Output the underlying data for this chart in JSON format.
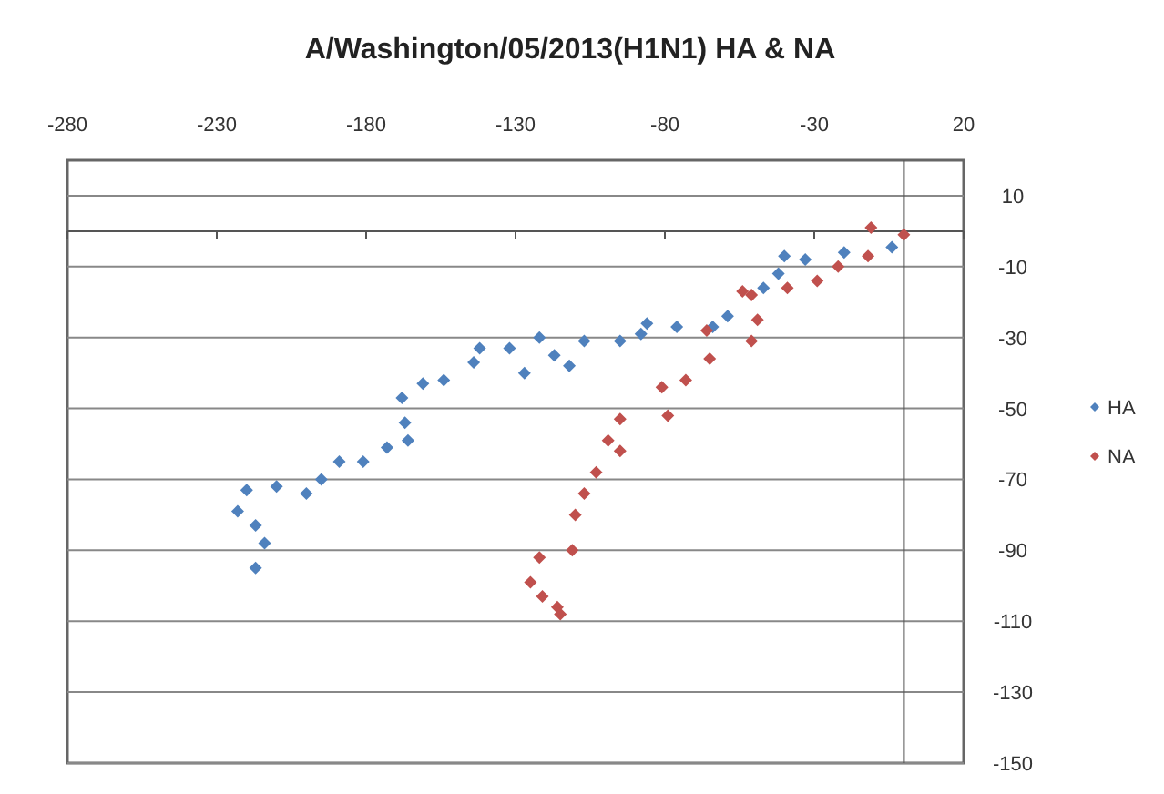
{
  "chart_data": {
    "type": "scatter",
    "title": "A/Washington/05/2013(H1N1) HA & NA",
    "xlim": [
      -280,
      20
    ],
    "xticks": [
      -280,
      -230,
      -180,
      -130,
      -80,
      -30,
      20
    ],
    "ylim": [
      -150,
      20
    ],
    "yticks": [
      -150,
      -130,
      -110,
      -90,
      -70,
      -50,
      -30,
      -10,
      10
    ],
    "grid": "y",
    "legend": "right",
    "marker": "diamond",
    "series": [
      {
        "name": "HA",
        "color": "#4f81bd",
        "x": [
          -4,
          -20,
          -33,
          -40,
          -42,
          -47,
          -59,
          -64,
          -76,
          -86,
          -88,
          -95,
          -107,
          -112,
          -117,
          -122,
          -127,
          -132,
          -142,
          -144,
          -154,
          -161,
          -168,
          -167,
          -166,
          -173,
          -181,
          -189,
          -195,
          -200,
          -210,
          -220,
          -223,
          -217,
          -214,
          -217
        ],
        "values": [
          -4.5,
          -6,
          -8,
          -7,
          -12,
          -16,
          -24,
          -27,
          -27,
          -26,
          -29,
          -31,
          -31,
          -38,
          -35,
          -30,
          -40,
          -33,
          -33,
          -37,
          -42,
          -43,
          -47,
          -54,
          -59,
          -61,
          -65,
          -65,
          -70,
          -74,
          -72,
          -73,
          -79,
          -83,
          -88,
          -95
        ]
      },
      {
        "name": "NA",
        "color": "#c0504d",
        "x": [
          0,
          -11,
          -12,
          -22,
          -29,
          -39,
          -51,
          -54,
          -49,
          -51,
          -66,
          -65,
          -73,
          -81,
          -79,
          -95,
          -99,
          -95,
          -103,
          -107,
          -110,
          -111,
          -122,
          -125,
          -121,
          -116,
          -115
        ],
        "values": [
          -1,
          1,
          -7,
          -10,
          -14,
          -16,
          -18,
          -17,
          -25,
          -31,
          -28,
          -36,
          -42,
          -44,
          -52,
          -53,
          -59,
          -62,
          -68,
          -74,
          -80,
          -90,
          -92,
          -99,
          -103,
          -106,
          -108
        ]
      }
    ]
  }
}
